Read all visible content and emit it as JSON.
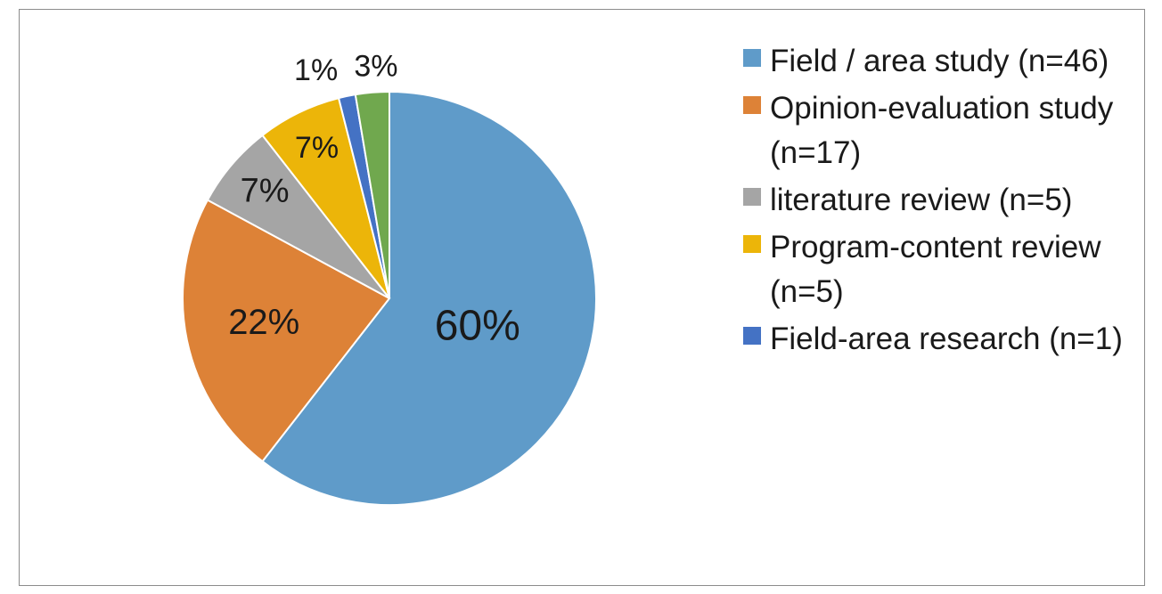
{
  "chart_data": {
    "type": "pie",
    "categories": [
      "Field / area study (n=46)",
      "Opinion-evaluation study (n=17)",
      "literature review (n=5)",
      "Program-content review (n=5)",
      "Field-area research (n=1)",
      ""
    ],
    "values": [
      46,
      17,
      5,
      5,
      1,
      2
    ],
    "data_labels": [
      "60%",
      "22%",
      "7%",
      "7%",
      "1%",
      "3%"
    ],
    "colors": [
      "#5f9bc9",
      "#dd8237",
      "#a5a5a5",
      "#ecb509",
      "#4472c4",
      "#70a84e"
    ],
    "legend_position": "right",
    "start_angle_deg": 0,
    "direction": "clockwise"
  }
}
